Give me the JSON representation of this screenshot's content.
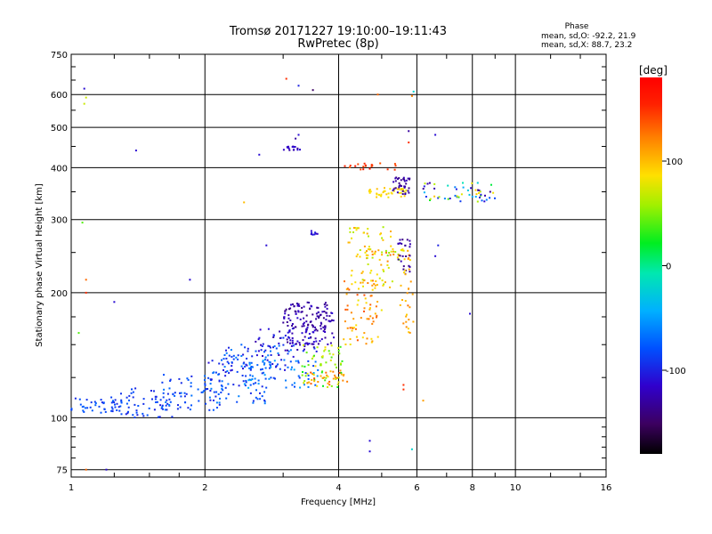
{
  "chart_data": {
    "type": "scatter",
    "title": "Tromsø 20171227 19:10:00–19:11:43",
    "subtitle": "RwPretec (8p)",
    "xlabel": "Frequency [MHz]",
    "ylabel": "Stationary phase Virtual Height [km]",
    "x_scale": "log",
    "y_scale": "log",
    "xlim": [
      1,
      16
    ],
    "ylim": [
      72,
      750
    ],
    "x_ticks": [
      1,
      2,
      4,
      6,
      8,
      10,
      16
    ],
    "x_tick_labels": [
      "1",
      "2",
      "4",
      "6",
      "8",
      "10",
      "16"
    ],
    "y_ticks": [
      75,
      100,
      200,
      300,
      400,
      500,
      600,
      750
    ],
    "y_tick_labels": [
      "75",
      "100",
      "200",
      "300",
      "400",
      "500",
      "600",
      "750"
    ],
    "grid": true,
    "phase_box": {
      "title": "Phase",
      "lines": [
        "mean, sd,O: -92.2, 21.9",
        "mean, sd,X:  88.7, 23.2"
      ]
    },
    "colorbar": {
      "label": "[deg]",
      "range": [
        -180,
        180
      ],
      "ticks": [
        100,
        0,
        -100
      ],
      "tick_labels": [
        "100",
        "0",
        "-100"
      ]
    },
    "series": [
      {
        "comment_free": true,
        "clusters": [
          {
            "f": [
              1.0,
              1.3
            ],
            "h": [
              102,
              112
            ],
            "n": 45,
            "c": [
              -100,
              -70
            ]
          },
          {
            "f": [
              1.25,
              1.7
            ],
            "h": [
              100,
              118
            ],
            "n": 55,
            "c": [
              -105,
              -75
            ]
          },
          {
            "f": [
              1.6,
              2.2
            ],
            "h": [
              104,
              128
            ],
            "n": 70,
            "c": [
              -100,
              -60
            ]
          },
          {
            "f": [
              2.0,
              2.8
            ],
            "h": [
              108,
              140
            ],
            "n": 80,
            "c": [
              -110,
              -60
            ]
          },
          {
            "f": [
              2.2,
              3.2
            ],
            "h": [
              130,
              150
            ],
            "n": 60,
            "c": [
              -110,
              -60
            ]
          },
          {
            "f": [
              2.6,
              3.6
            ],
            "h": [
              140,
              165
            ],
            "n": 60,
            "c": [
              -130,
              -90
            ]
          },
          {
            "f": [
              3.0,
              3.9
            ],
            "h": [
              150,
              190
            ],
            "n": 110,
            "c": [
              -140,
              -110
            ]
          },
          {
            "f": [
              3.2,
              3.9
            ],
            "h": [
              165,
              185
            ],
            "n": 30,
            "c": [
              -140,
              -120
            ]
          },
          {
            "f": [
              2.4,
              3.6
            ],
            "h": [
              118,
              138
            ],
            "n": 55,
            "c": [
              -90,
              -40
            ]
          },
          {
            "f": [
              3.3,
              4.1
            ],
            "h": [
              118,
              150
            ],
            "n": 60,
            "c": [
              20,
              90
            ]
          },
          {
            "f": [
              3.4,
              4.2
            ],
            "h": [
              120,
              130
            ],
            "n": 30,
            "c": [
              100,
              140
            ]
          },
          {
            "f": [
              4.1,
              5.0
            ],
            "h": [
              150,
              215
            ],
            "n": 70,
            "c": [
              80,
              140
            ]
          },
          {
            "f": [
              4.2,
              5.3
            ],
            "h": [
              205,
              290
            ],
            "n": 60,
            "c": [
              60,
              110
            ]
          },
          {
            "f": [
              4.3,
              5.8
            ],
            "h": [
              238,
              255
            ],
            "n": 45,
            "c": [
              50,
              130
            ]
          },
          {
            "f": [
              4.6,
              5.7
            ],
            "h": [
              338,
              358
            ],
            "n": 40,
            "c": [
              80,
              100
            ]
          },
          {
            "f": [
              5.3,
              5.8
            ],
            "h": [
              345,
              380
            ],
            "n": 35,
            "c": [
              -140,
              -120
            ]
          },
          {
            "f": [
              5.4,
              5.8
            ],
            "h": [
              220,
              270
            ],
            "n": 25,
            "c": [
              -140,
              -120
            ]
          },
          {
            "f": [
              5.5,
              5.9
            ],
            "h": [
              160,
              230
            ],
            "n": 25,
            "c": [
              90,
              130
            ]
          },
          {
            "f": [
              4.0,
              5.6
            ],
            "h": [
              395,
              410
            ],
            "n": 20,
            "c": [
              130,
              160
            ]
          },
          {
            "f": [
              6.2,
              9.0
            ],
            "h": [
              330,
              370
            ],
            "n": 55,
            "c": [
              -140,
              100
            ]
          },
          {
            "f": [
              3.0,
              3.3
            ],
            "h": [
              440,
              450
            ],
            "n": 15,
            "c": [
              -130,
              -110
            ]
          },
          {
            "f": [
              3.45,
              3.6
            ],
            "h": [
              275,
              282
            ],
            "n": 8,
            "c": [
              -120,
              -100
            ]
          }
        ],
        "singles": [
          {
            "f": 1.07,
            "h": 620,
            "c": -110
          },
          {
            "f": 1.07,
            "h": 570,
            "c": 70
          },
          {
            "f": 1.08,
            "h": 590,
            "c": 70
          },
          {
            "f": 1.06,
            "h": 295,
            "c": 40
          },
          {
            "f": 1.08,
            "h": 215,
            "c": 130
          },
          {
            "f": 1.08,
            "h": 200,
            "c": 150
          },
          {
            "f": 1.04,
            "h": 160,
            "c": 40
          },
          {
            "f": 1.08,
            "h": 75,
            "c": 130
          },
          {
            "f": 1.2,
            "h": 75,
            "c": -110
          },
          {
            "f": 1.4,
            "h": 440,
            "c": -110
          },
          {
            "f": 1.25,
            "h": 190,
            "c": -110
          },
          {
            "f": 1.85,
            "h": 215,
            "c": -110
          },
          {
            "f": 2.45,
            "h": 330,
            "c": 100
          },
          {
            "f": 2.75,
            "h": 260,
            "c": -110
          },
          {
            "f": 3.25,
            "h": 480,
            "c": -110
          },
          {
            "f": 3.2,
            "h": 470,
            "c": -130
          },
          {
            "f": 3.05,
            "h": 655,
            "c": 150
          },
          {
            "f": 3.25,
            "h": 630,
            "c": -100
          },
          {
            "f": 3.5,
            "h": 615,
            "c": -150
          },
          {
            "f": 2.65,
            "h": 430,
            "c": -110
          },
          {
            "f": 4.9,
            "h": 600,
            "c": 130
          },
          {
            "f": 5.9,
            "h": 610,
            "c": -20
          },
          {
            "f": 5.85,
            "h": 595,
            "c": 120
          },
          {
            "f": 5.75,
            "h": 490,
            "c": -130
          },
          {
            "f": 5.75,
            "h": 460,
            "c": 150
          },
          {
            "f": 6.6,
            "h": 480,
            "c": -110
          },
          {
            "f": 4.7,
            "h": 88,
            "c": -110
          },
          {
            "f": 4.7,
            "h": 83,
            "c": -110
          },
          {
            "f": 5.85,
            "h": 84,
            "c": -20
          },
          {
            "f": 7.9,
            "h": 178,
            "c": -110
          },
          {
            "f": 6.2,
            "h": 110,
            "c": 110
          },
          {
            "f": 5.6,
            "h": 117,
            "c": 150
          },
          {
            "f": 5.6,
            "h": 120,
            "c": 150
          },
          {
            "f": 6.6,
            "h": 245,
            "c": -110
          },
          {
            "f": 6.7,
            "h": 260,
            "c": -100
          }
        ]
      }
    ]
  }
}
